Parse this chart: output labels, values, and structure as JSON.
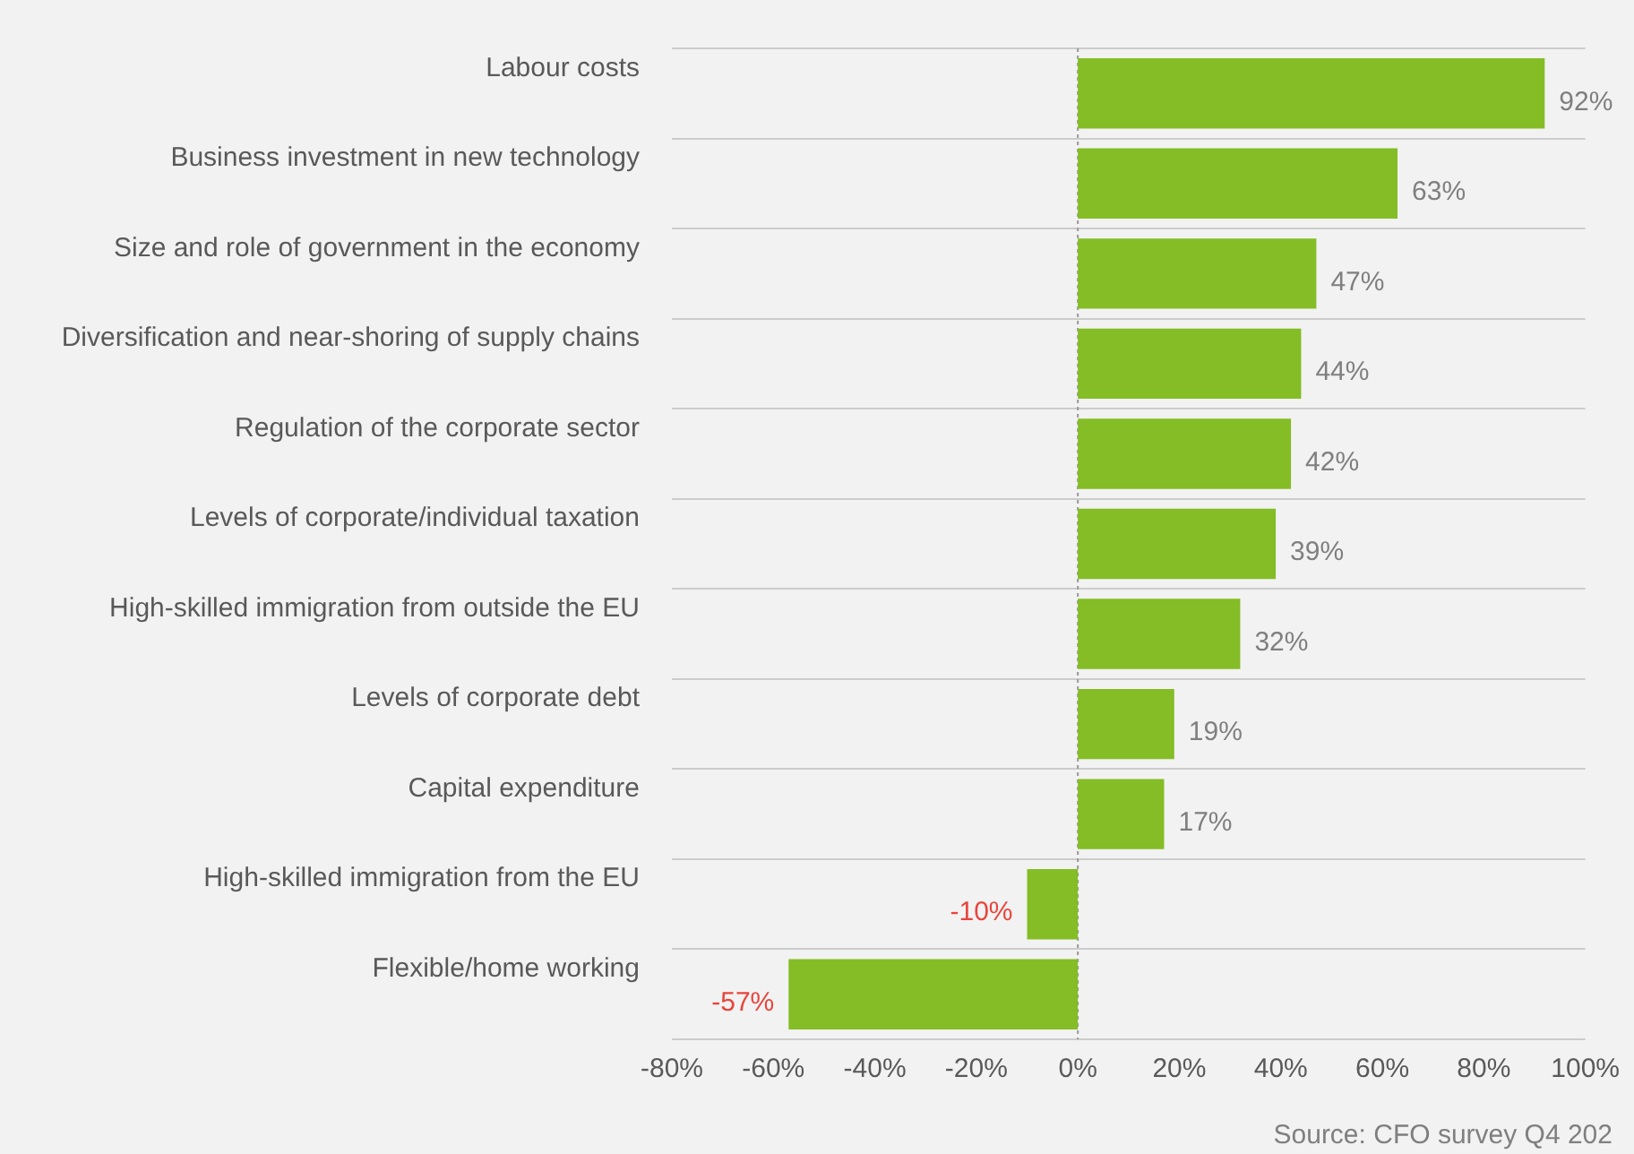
{
  "chart_data": {
    "type": "bar",
    "orientation": "horizontal",
    "categories": [
      "Labour costs",
      "Business investment in new technology",
      "Size and role of government in the economy",
      "Diversification and near-shoring of supply chains",
      "Regulation of the corporate sector",
      "Levels of corporate/individual taxation",
      "High-skilled immigration from outside the EU",
      "Levels of corporate debt",
      "Capital expenditure",
      "High-skilled immigration from the EU",
      "Flexible/home working"
    ],
    "values": [
      92,
      63,
      47,
      44,
      42,
      39,
      32,
      19,
      17,
      -10,
      -57
    ],
    "value_labels": [
      "92%",
      "63%",
      "47%",
      "44%",
      "42%",
      "39%",
      "32%",
      "19%",
      "17%",
      "-10%",
      "-57%"
    ],
    "color": "#84bd25",
    "xlim": [
      -80,
      100
    ],
    "xticks": [
      {
        "value": -80,
        "label": "-80%"
      },
      {
        "value": -60,
        "label": "-60%"
      },
      {
        "value": -40,
        "label": "-40%"
      },
      {
        "value": -20,
        "label": "-20%"
      },
      {
        "value": 0,
        "label": "0%"
      },
      {
        "value": 20,
        "label": "20%"
      },
      {
        "value": 40,
        "label": "40%"
      },
      {
        "value": 60,
        "label": "60%"
      },
      {
        "value": 80,
        "label": "80%"
      },
      {
        "value": 100,
        "label": "100%"
      }
    ],
    "grid": "y",
    "ref_lines": [
      {
        "axis": "x",
        "value": 0,
        "color": "#999999",
        "line_style": "dotted"
      }
    ],
    "annotations": [
      "Source: CFO survey Q4 202"
    ]
  }
}
